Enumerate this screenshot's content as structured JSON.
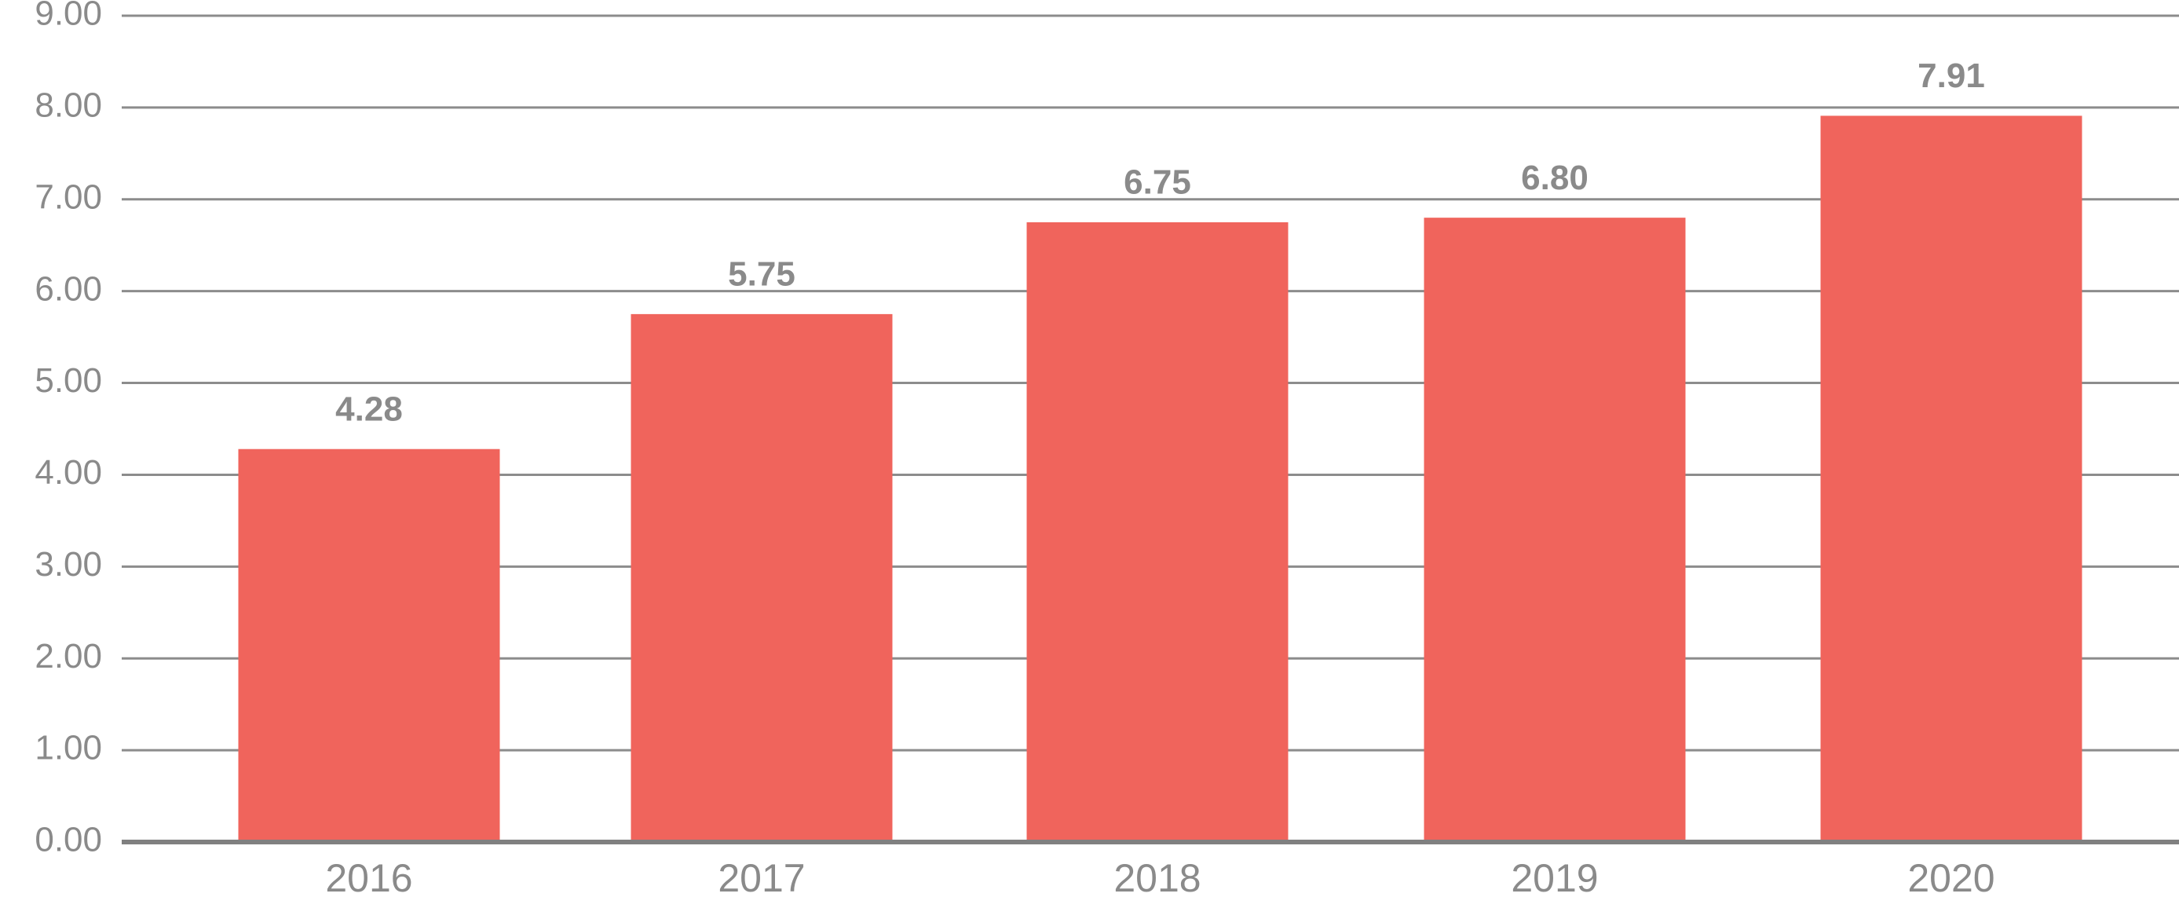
{
  "chart_data": {
    "type": "bar",
    "title": "",
    "xlabel": "",
    "ylabel": "",
    "categories": [
      "2016",
      "2017",
      "2018",
      "2019",
      "2020"
    ],
    "values": [
      4.28,
      5.75,
      6.75,
      6.8,
      7.91
    ],
    "value_labels": [
      "4.28",
      "5.75",
      "6.75",
      "6.80",
      "7.91"
    ],
    "ylim": [
      0,
      9
    ],
    "yticks": [
      0,
      1,
      2,
      3,
      4,
      5,
      6,
      7,
      8,
      9
    ],
    "ytick_labels": [
      "0.00",
      "1.00",
      "2.00",
      "3.00",
      "4.00",
      "5.00",
      "6.00",
      "7.00",
      "8.00",
      "9.00"
    ],
    "grid": true,
    "legend": "none",
    "bar_color": "#f0645c",
    "grid_color": "#8c8c8c",
    "text_color": "#8a8a8a"
  }
}
